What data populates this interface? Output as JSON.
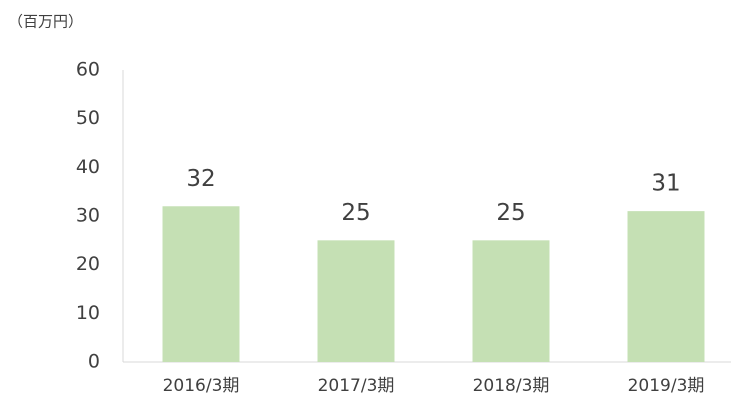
{
  "chart_data": {
    "type": "bar",
    "unit_label": "（百万円）",
    "categories": [
      "2016/3期",
      "2017/3期",
      "2018/3期",
      "2019/3期"
    ],
    "values": [
      32,
      25,
      25,
      31
    ],
    "color": "#c5e0b4",
    "ylim": [
      0,
      60
    ],
    "yticks": [
      0,
      10,
      20,
      30,
      40,
      50,
      60
    ],
    "grid": false
  }
}
